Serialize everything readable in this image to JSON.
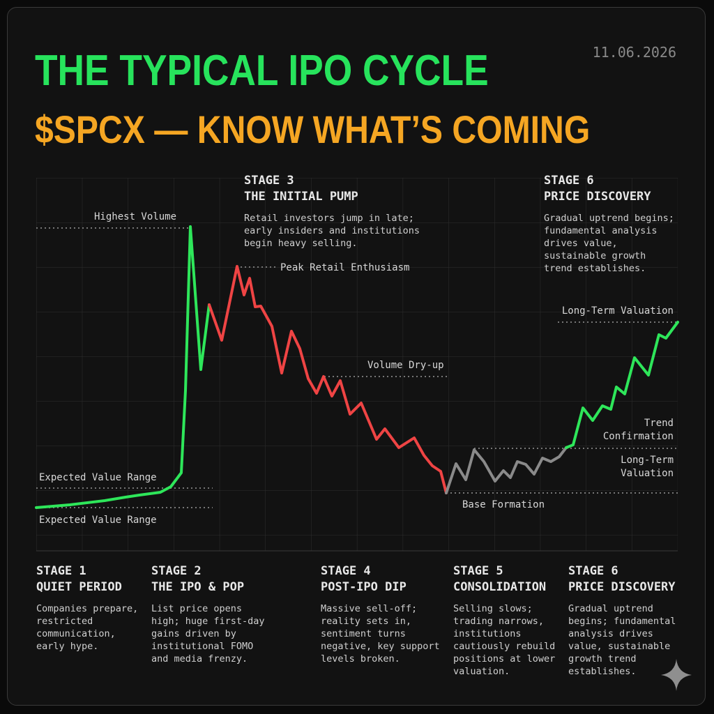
{
  "chart_data": {
    "type": "line",
    "title": "THE TYPICAL IPO CYCLE",
    "subtitle": "$SPCX — KNOW WHAT’S COMING",
    "date": "11.06.2026",
    "xlim": [
      0,
      920
    ],
    "ylim": [
      0,
      535
    ],
    "series": [
      {
        "color": "#2ee65a",
        "x": [
          0,
          48,
          98,
          128,
          148,
          178,
          193,
          208,
          214,
          221,
          236,
          248
        ],
        "values": [
          62,
          66,
          72,
          77,
          80,
          84,
          92,
          112,
          230,
          465,
          260,
          353
        ]
      },
      {
        "color": "#ef4444",
        "x": [
          248,
          266,
          288,
          298,
          306,
          314,
          322,
          338,
          352,
          366,
          378,
          390,
          402,
          412,
          424,
          436,
          450,
          466,
          488,
          500,
          520,
          542,
          556,
          568,
          580,
          588
        ],
        "values": [
          353,
          302,
          408,
          367,
          391,
          350,
          351,
          322,
          255,
          315,
          290,
          247,
          226,
          250,
          222,
          244,
          196,
          212,
          160,
          175,
          148,
          162,
          137,
          122,
          114,
          83
        ]
      },
      {
        "color": "#8a8a8a",
        "x": [
          588,
          602,
          616,
          628,
          642,
          658,
          670,
          680,
          690,
          702,
          714,
          726,
          738,
          750,
          760
        ],
        "values": [
          83,
          125,
          102,
          145,
          128,
          100,
          115,
          105,
          128,
          124,
          110,
          133,
          128,
          135,
          148
        ]
      },
      {
        "color": "#2ee65a",
        "x": [
          760,
          770,
          784,
          798,
          812,
          824,
          832,
          844,
          858,
          878,
          893,
          903,
          920
        ],
        "values": [
          148,
          152,
          205,
          187,
          208,
          203,
          235,
          225,
          277,
          252,
          310,
          305,
          328
        ]
      }
    ],
    "annotations": [
      [
        "Highest Volume"
      ],
      [
        "Peak Retail Enthusiasm"
      ],
      [
        "Volume Dry-up"
      ],
      [
        "Expected Value Range"
      ],
      [
        "Expected Value Range"
      ],
      [
        "Base Formation"
      ],
      [
        "Long-Term Valuation"
      ],
      [
        "Trend",
        "Confirmation"
      ],
      [
        "Long-Term",
        "Valuation"
      ]
    ],
    "top_stages": [
      {
        "stage": "STAGE 3",
        "name": "THE INITIAL PUMP",
        "text": "Retail investors jump in late; early insiders and institutions begin heavy selling."
      },
      {
        "stage": "STAGE 6",
        "name": "PRICE DISCOVERY",
        "text": "Gradual uptrend begins; fundamental analysis drives value, sustainable growth trend establishes."
      }
    ],
    "bottom_stages": [
      {
        "stage": "STAGE 1",
        "name": "QUIET PERIOD",
        "text": "Companies prepare, restricted communication, early hype."
      },
      {
        "stage": "STAGE 2",
        "name": "THE IPO & POP",
        "text": "List price opens high; huge first-day gains driven by institutional FOMO and media frenzy."
      },
      {
        "stage": "STAGE 4",
        "name": "POST-IPO DIP",
        "text": "Massive sell-off; reality sets in, sentiment turns negative, key support levels broken."
      },
      {
        "stage": "STAGE 5",
        "name": "CONSOLIDATION",
        "text": "Selling slows; trading narrows, institutions cautiously rebuild positions at lower valuation."
      },
      {
        "stage": "STAGE 6",
        "name": "PRICE DISCOVERY",
        "text": "Gradual uptrend begins; fundamental analysis drives value, sustainable growth trend establishes."
      }
    ]
  }
}
